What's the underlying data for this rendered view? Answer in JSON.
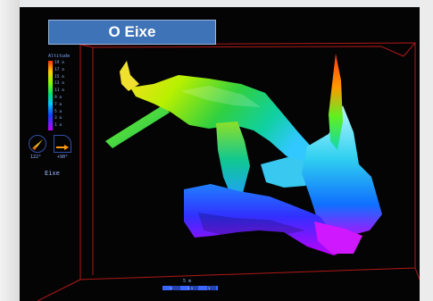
{
  "title": "O Eixe",
  "legend": {
    "title": "Altitude",
    "ticks": [
      "19 a",
      "17 a",
      "15 a",
      "13 a",
      "11 a",
      "9 a",
      "7 a",
      "5 a",
      "3 a",
      "1 a"
    ]
  },
  "compass": {
    "heading_value": "122°",
    "tilt_value": "+90°",
    "label": "Eixe"
  },
  "scale": {
    "label": "5 m",
    "ticks": [
      "0",
      "2.5",
      "5"
    ]
  },
  "colors": {
    "banner": "#3f73b8",
    "viewer_background": "#040404",
    "bounding_box": "#b01818",
    "ramp_high": "#ff3010",
    "ramp_mid": "#00e070",
    "ramp_low": "#c000ff"
  }
}
